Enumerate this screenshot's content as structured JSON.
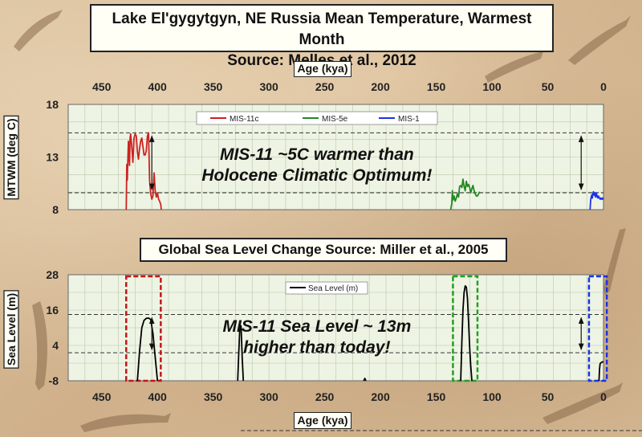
{
  "title1_line1": "Lake El'gygytgyn, NE Russia Mean Temperature, Warmest Month",
  "title1_line2": "Source: Melles et al., 2012",
  "title2": "Global Sea Level Change Source: Miller et al., 2005",
  "chart_data": [
    {
      "type": "line",
      "xlabel": "Age (kya)",
      "ylabel": "MTWM (deg C)",
      "xlim": [
        480,
        0
      ],
      "ylim": [
        8,
        18
      ],
      "x_ticks": [
        450,
        400,
        350,
        300,
        250,
        200,
        150,
        100,
        50,
        0
      ],
      "y_ticks": [
        8,
        13,
        18
      ],
      "grid": true,
      "legend_position": "top-center",
      "series": [
        {
          "name": "MIS-11c",
          "color": "#cc2222",
          "x": [
            428,
            427.5,
            427,
            426,
            425,
            424.5,
            424,
            423,
            422,
            421,
            420,
            419,
            418,
            417,
            416,
            415,
            414,
            413,
            412,
            411,
            410,
            409,
            408,
            407,
            406,
            405,
            404,
            403,
            402,
            401,
            400,
            399,
            398,
            397,
            396.5
          ],
          "y": [
            8.0,
            12.3,
            10.8,
            14.5,
            12.2,
            14.8,
            15.2,
            14.0,
            12.5,
            14.8,
            15.2,
            15.0,
            13.5,
            12.8,
            13.8,
            14.5,
            14.8,
            14.0,
            13.2,
            13.2,
            13.6,
            15.0,
            15.3,
            10.8,
            9.5,
            9.0,
            9.3,
            11.5,
            9.8,
            9.2,
            9.6,
            9.0,
            8.8,
            8.5,
            8.0
          ]
        },
        {
          "name": "MIS-5e",
          "color": "#228822",
          "x": [
            137,
            136,
            135.5,
            135,
            134,
            133,
            132,
            131,
            130,
            129,
            128,
            127,
            126,
            125,
            124,
            123,
            122,
            121,
            120,
            119,
            118,
            117,
            116,
            115,
            114,
            113,
            112,
            111
          ],
          "y": [
            8.0,
            8.6,
            9.8,
            8.9,
            9.3,
            8.8,
            9.1,
            9.5,
            9.2,
            10.2,
            10.3,
            10.1,
            10.9,
            10.2,
            9.8,
            10.7,
            10.2,
            10.4,
            10.1,
            9.6,
            10.0,
            10.3,
            9.8,
            9.5,
            9.3,
            9.3,
            9.5,
            9.7
          ]
        },
        {
          "name": "MIS-1",
          "color": "#1a33e6",
          "x": [
            12,
            11.5,
            11,
            10.5,
            10,
            9.5,
            9,
            8.5,
            8,
            7.5,
            7,
            6.5,
            6,
            5.5,
            5,
            4.5,
            4,
            3.5,
            3,
            2.5,
            2,
            1.5,
            1,
            0.5,
            0
          ],
          "y": [
            8.0,
            8.9,
            9.2,
            9.4,
            9.1,
            9.5,
            9.7,
            9.4,
            9.6,
            9.3,
            9.2,
            9.6,
            9.4,
            9.2,
            9.1,
            9.3,
            9.2,
            9.1,
            9.0,
            9.1,
            9.0,
            9.0,
            9.1,
            9.0,
            9.1
          ]
        }
      ],
      "reference_lines": [
        15.3,
        9.6
      ],
      "annotation_line1": "MIS-11 ~5C warmer than",
      "annotation_line2": "Holocene Climatic Optimum!"
    },
    {
      "type": "line",
      "xlabel": "Age (kya)",
      "ylabel": "Sea Level (m)",
      "xlim": [
        480,
        0
      ],
      "ylim": [
        -8,
        28
      ],
      "x_ticks": [
        450,
        400,
        350,
        300,
        250,
        200,
        150,
        100,
        50,
        0
      ],
      "y_ticks": [
        -8,
        4,
        16,
        28
      ],
      "grid": true,
      "legend_position": "top-center",
      "series": [
        {
          "name": "Sea Level (m)",
          "color": "#000000",
          "peaks": [
            {
              "x": [
                418,
                416,
                414,
                412,
                410,
                408,
                406,
                404,
                402,
                400
              ],
              "y": [
                -8,
                2,
                10,
                12.5,
                13.2,
                13.3,
                12.8,
                8,
                0,
                -8
              ]
            },
            {
              "x": [
                328,
                327,
                326,
                325,
                324,
                323
              ],
              "y": [
                -8,
                2,
                11,
                10.5,
                0,
                -8
              ]
            },
            {
              "x": [
                215,
                214,
                213
              ],
              "y": [
                -8,
                -7.2,
                -8
              ]
            },
            {
              "x": [
                128,
                127,
                126,
                125,
                124,
                123,
                122,
                121,
                120,
                119,
                118
              ],
              "y": [
                -8,
                5,
                16,
                22,
                24.2,
                23.8,
                20,
                12,
                3,
                -3,
                -8
              ]
            },
            {
              "x": [
                4,
                3.5,
                3,
                2,
                1,
                0
              ],
              "y": [
                -8,
                -4,
                -2.2,
                -1.8,
                -1.6,
                -1.6
              ]
            }
          ]
        }
      ],
      "reference_lines": [
        14.5,
        1.5
      ],
      "annotation_line1": "MIS-11 Sea Level ~ 13m",
      "annotation_line2": "higher than today!",
      "highlight_boxes": [
        {
          "x_range": [
            428,
            397
          ],
          "color": "#c0181a"
        },
        {
          "x_range": [
            135,
            113
          ],
          "color": "#22a022"
        },
        {
          "x_range": [
            13,
            -3
          ],
          "color": "#1a33e6"
        }
      ]
    }
  ]
}
